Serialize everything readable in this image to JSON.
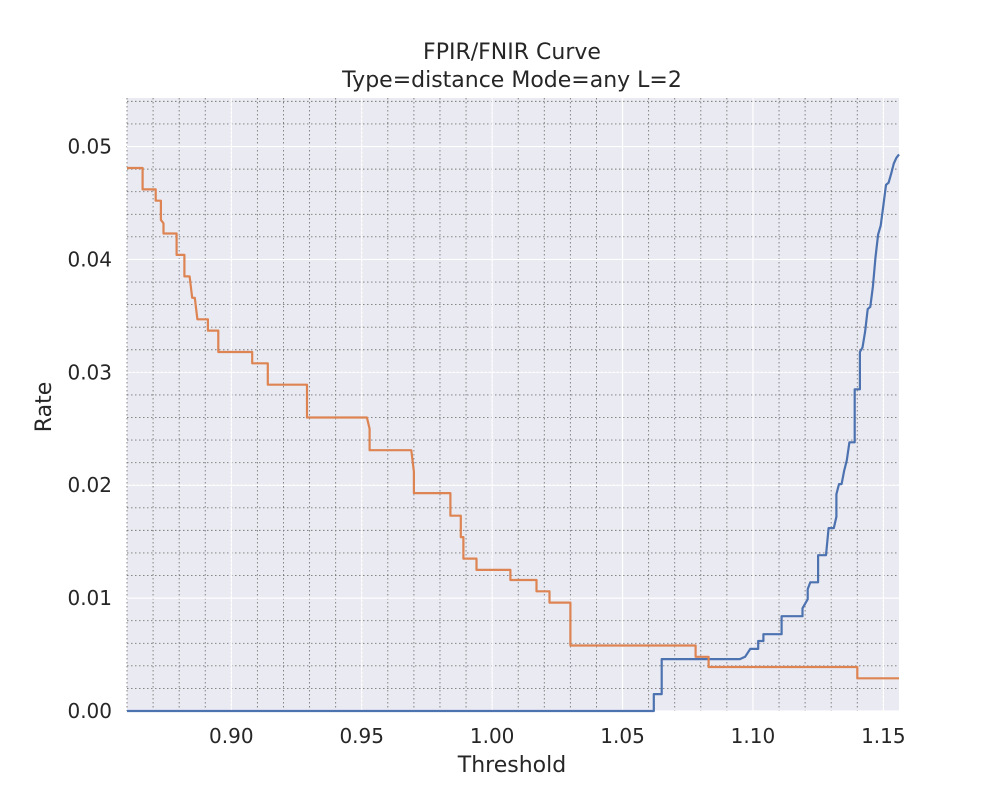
{
  "chart_data": {
    "type": "line",
    "title": "FPIR/FNIR Curve",
    "subtitle": "Type=distance Mode=any L=2",
    "xlabel": "Threshold",
    "ylabel": "Rate",
    "xlim": [
      0.86,
      1.156
    ],
    "ylim": [
      0.0,
      0.0543
    ],
    "x_ticks": [
      0.9,
      0.95,
      1.0,
      1.05,
      1.1,
      1.15
    ],
    "x_tick_labels": [
      "0.90",
      "0.95",
      "1.00",
      "1.05",
      "1.10",
      "1.15"
    ],
    "y_ticks": [
      0.0,
      0.01,
      0.02,
      0.03,
      0.04,
      0.05
    ],
    "y_tick_labels": [
      "0.00",
      "0.01",
      "0.02",
      "0.03",
      "0.04",
      "0.05"
    ],
    "x_minor_step": 0.01,
    "y_minor_step": 0.002,
    "grid": true,
    "background": "#eaeaf2",
    "series": [
      {
        "color": "#4c72b0",
        "step": true,
        "points": [
          [
            0.86,
            0.0
          ],
          [
            1.062,
            0.0
          ],
          [
            1.062,
            0.0015
          ],
          [
            1.065,
            0.0015
          ],
          [
            1.065,
            0.0046
          ],
          [
            1.083,
            0.0046
          ],
          [
            1.095,
            0.0046
          ],
          [
            1.097,
            0.0048
          ],
          [
            1.099,
            0.0055
          ],
          [
            1.102,
            0.0055
          ],
          [
            1.102,
            0.0062
          ],
          [
            1.104,
            0.0062
          ],
          [
            1.104,
            0.0068
          ],
          [
            1.111,
            0.0068
          ],
          [
            1.111,
            0.0084
          ],
          [
            1.119,
            0.0084
          ],
          [
            1.119,
            0.0091
          ],
          [
            1.121,
            0.0099
          ],
          [
            1.121,
            0.0108
          ],
          [
            1.122,
            0.0114
          ],
          [
            1.125,
            0.0114
          ],
          [
            1.125,
            0.0138
          ],
          [
            1.128,
            0.0138
          ],
          [
            1.129,
            0.0162
          ],
          [
            1.131,
            0.0162
          ],
          [
            1.132,
            0.0172
          ],
          [
            1.132,
            0.0192
          ],
          [
            1.133,
            0.0201
          ],
          [
            1.134,
            0.0201
          ],
          [
            1.135,
            0.0213
          ],
          [
            1.136,
            0.0222
          ],
          [
            1.137,
            0.0238
          ],
          [
            1.139,
            0.0238
          ],
          [
            1.139,
            0.0285
          ],
          [
            1.141,
            0.0285
          ],
          [
            1.141,
            0.0318
          ],
          [
            1.142,
            0.0322
          ],
          [
            1.143,
            0.0336
          ],
          [
            1.144,
            0.0356
          ],
          [
            1.145,
            0.0358
          ],
          [
            1.146,
            0.0376
          ],
          [
            1.147,
            0.0402
          ],
          [
            1.148,
            0.0422
          ],
          [
            1.149,
            0.043
          ],
          [
            1.15,
            0.0448
          ],
          [
            1.151,
            0.0466
          ],
          [
            1.152,
            0.0468
          ],
          [
            1.153,
            0.0476
          ],
          [
            1.154,
            0.0485
          ],
          [
            1.155,
            0.049
          ],
          [
            1.156,
            0.0493
          ]
        ]
      },
      {
        "color": "#dd8452",
        "step": true,
        "points": [
          [
            0.86,
            0.0481
          ],
          [
            0.866,
            0.0481
          ],
          [
            0.866,
            0.0462
          ],
          [
            0.871,
            0.0462
          ],
          [
            0.871,
            0.0452
          ],
          [
            0.873,
            0.0452
          ],
          [
            0.873,
            0.0435
          ],
          [
            0.874,
            0.0432
          ],
          [
            0.874,
            0.0423
          ],
          [
            0.879,
            0.0423
          ],
          [
            0.879,
            0.0404
          ],
          [
            0.882,
            0.0404
          ],
          [
            0.882,
            0.0385
          ],
          [
            0.884,
            0.0385
          ],
          [
            0.885,
            0.0366
          ],
          [
            0.886,
            0.0366
          ],
          [
            0.887,
            0.0347
          ],
          [
            0.891,
            0.0347
          ],
          [
            0.891,
            0.0337
          ],
          [
            0.895,
            0.0337
          ],
          [
            0.895,
            0.0318
          ],
          [
            0.908,
            0.0318
          ],
          [
            0.908,
            0.0308
          ],
          [
            0.914,
            0.0308
          ],
          [
            0.914,
            0.0289
          ],
          [
            0.929,
            0.0289
          ],
          [
            0.929,
            0.026
          ],
          [
            0.952,
            0.026
          ],
          [
            0.953,
            0.025
          ],
          [
            0.953,
            0.0231
          ],
          [
            0.969,
            0.0231
          ],
          [
            0.97,
            0.0212
          ],
          [
            0.97,
            0.0193
          ],
          [
            0.984,
            0.0193
          ],
          [
            0.984,
            0.0173
          ],
          [
            0.988,
            0.0173
          ],
          [
            0.988,
            0.0154
          ],
          [
            0.989,
            0.0154
          ],
          [
            0.989,
            0.0135
          ],
          [
            0.994,
            0.0135
          ],
          [
            0.994,
            0.0125
          ],
          [
            1.007,
            0.0125
          ],
          [
            1.007,
            0.0116
          ],
          [
            1.017,
            0.0116
          ],
          [
            1.017,
            0.0106
          ],
          [
            1.022,
            0.0106
          ],
          [
            1.022,
            0.0096
          ],
          [
            1.03,
            0.0096
          ],
          [
            1.03,
            0.0058
          ],
          [
            1.078,
            0.0058
          ],
          [
            1.078,
            0.0048
          ],
          [
            1.083,
            0.0048
          ],
          [
            1.083,
            0.0039
          ],
          [
            1.14,
            0.0039
          ],
          [
            1.14,
            0.0029
          ],
          [
            1.156,
            0.0029
          ]
        ]
      }
    ]
  }
}
